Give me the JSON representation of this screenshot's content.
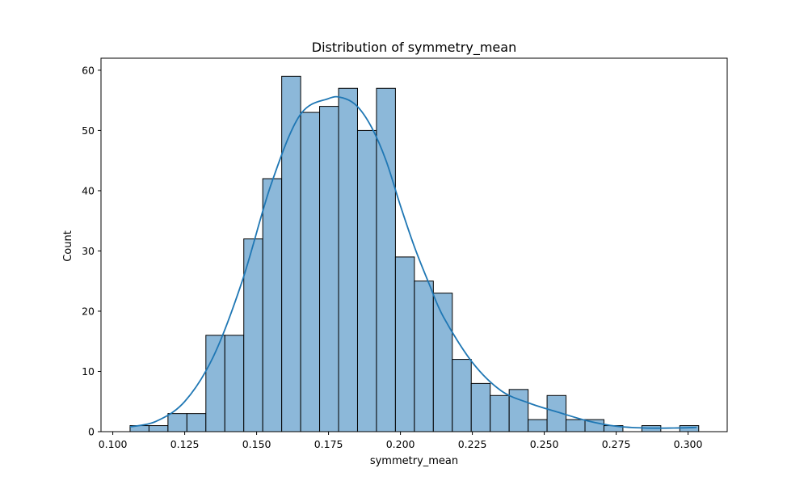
{
  "chart_data": {
    "type": "bar",
    "title": "Distribution of symmetry_mean",
    "xlabel": "symmetry_mean",
    "ylabel": "Count",
    "xlim": [
      0.0959,
      0.3136
    ],
    "ylim": [
      0,
      62
    ],
    "xticks": [
      0.1,
      0.125,
      0.15,
      0.175,
      0.2,
      0.225,
      0.25,
      0.275,
      0.3
    ],
    "xtick_labels": [
      "0.100",
      "0.125",
      "0.150",
      "0.175",
      "0.200",
      "0.225",
      "0.250",
      "0.275",
      "0.300"
    ],
    "yticks": [
      0,
      10,
      20,
      30,
      40,
      50,
      60
    ],
    "ytick_labels": [
      "0",
      "10",
      "20",
      "30",
      "40",
      "50",
      "60"
    ],
    "bin_start": 0.106,
    "bin_width": 0.00659,
    "counts": [
      1,
      1,
      3,
      3,
      16,
      16,
      32,
      42,
      59,
      53,
      54,
      57,
      50,
      57,
      29,
      25,
      23,
      12,
      8,
      6,
      7,
      2,
      6,
      2,
      2,
      1,
      0,
      1,
      0,
      1
    ],
    "kde": {
      "x": [
        0.106,
        0.115,
        0.125,
        0.135,
        0.145,
        0.155,
        0.165,
        0.175,
        0.18,
        0.185,
        0.19,
        0.195,
        0.2,
        0.205,
        0.21,
        0.215,
        0.225,
        0.235,
        0.245,
        0.255,
        0.265,
        0.275,
        0.285,
        0.295,
        0.303
      ],
      "y": [
        0.8,
        1.7,
        5.0,
        12.5,
        25.0,
        41.0,
        52.5,
        55.3,
        55.4,
        54.0,
        50.5,
        45.0,
        37.5,
        30.5,
        24.5,
        19.0,
        11.5,
        6.8,
        4.7,
        3.2,
        1.8,
        0.9,
        0.6,
        0.6,
        0.7
      ]
    },
    "colors": {
      "bar_fill": "#8cb8d9",
      "bar_edge": "#000000",
      "kde_line": "#1f77b4"
    },
    "grid": false,
    "legend": "none"
  }
}
